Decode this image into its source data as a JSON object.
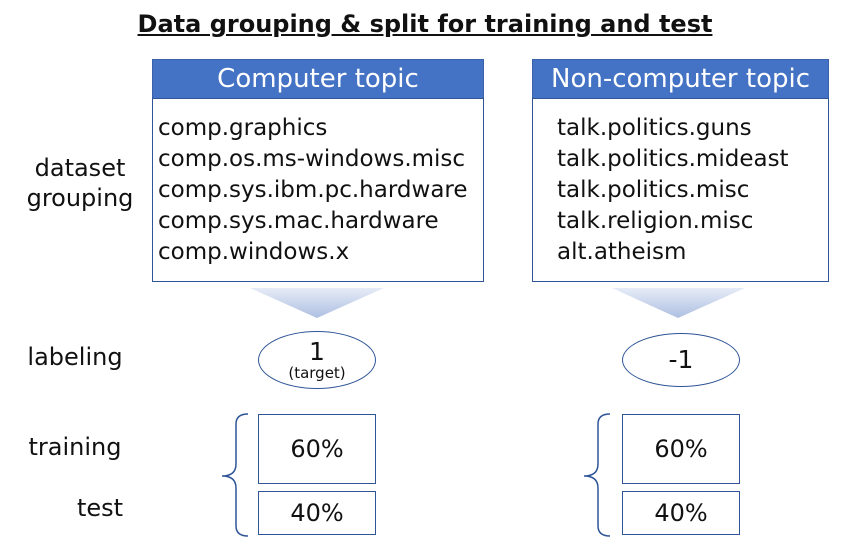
{
  "title": "Data grouping & split for training and test",
  "row_labels": {
    "dataset_grouping_line1": "dataset",
    "dataset_grouping_line2": "grouping",
    "labeling": "labeling",
    "training": "training",
    "test": "test"
  },
  "groups": [
    {
      "header": "Computer topic",
      "items": [
        "comp.graphics",
        "comp.os.ms-windows.misc",
        "comp.sys.ibm.pc.hardware",
        "comp.sys.mac.hardware",
        "comp.windows.x"
      ],
      "label_value": "1",
      "label_note": "(target)",
      "training_pct": "60%",
      "test_pct": "40%"
    },
    {
      "header": "Non-computer topic",
      "items": [
        "talk.politics.guns",
        "talk.politics.mideast",
        "talk.politics.misc",
        "talk.religion.misc",
        "alt.atheism"
      ],
      "label_value": "-1",
      "label_note": "",
      "training_pct": "60%",
      "test_pct": "40%"
    }
  ],
  "colors": {
    "header_fill": "#4472c4",
    "border": "#2f5597",
    "arrow": "#c9d6ee"
  }
}
